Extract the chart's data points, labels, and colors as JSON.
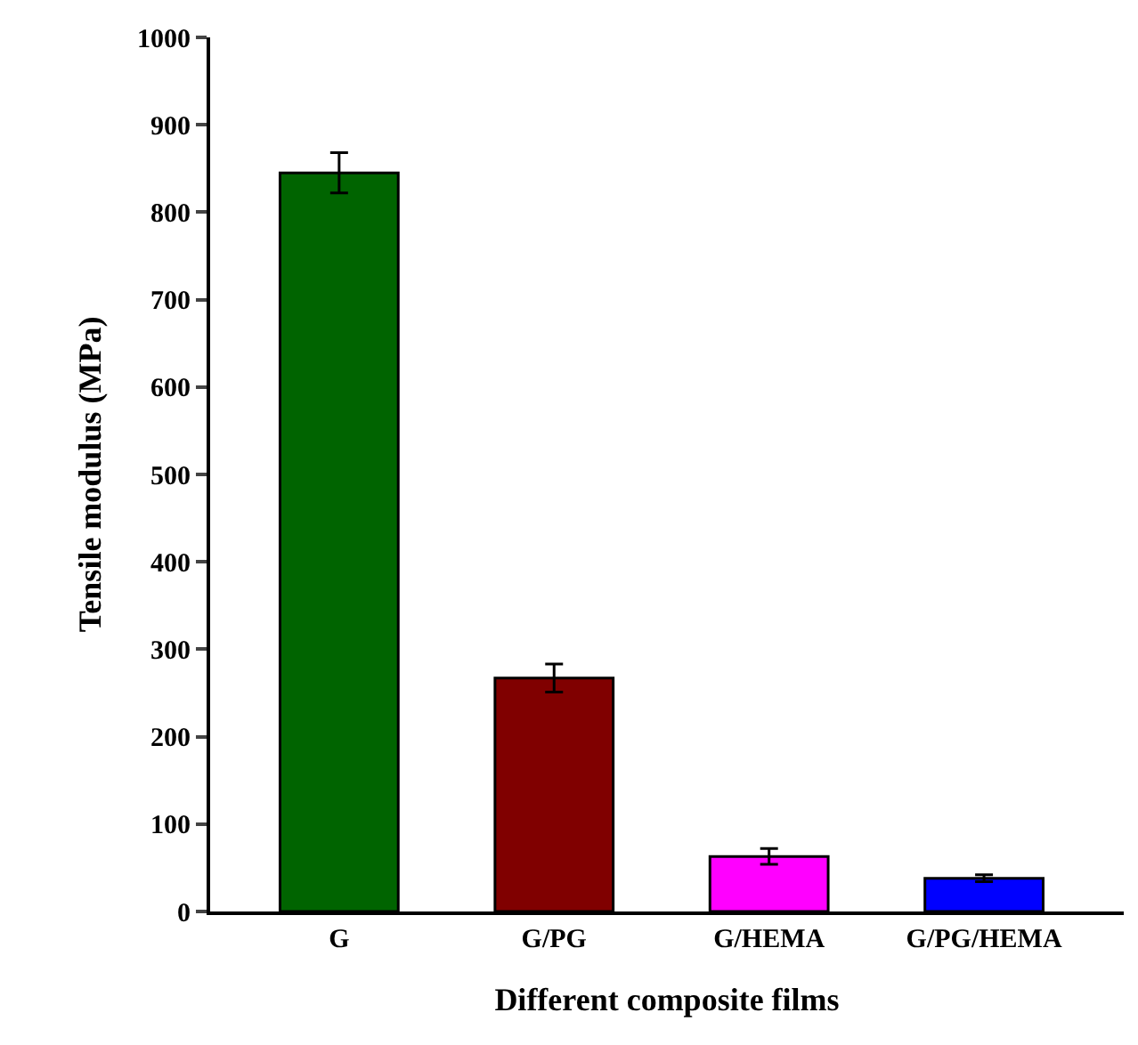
{
  "chart_data": {
    "type": "bar",
    "xlabel": "Different composite films",
    "ylabel": "Tensile modulus (MPa)",
    "categories": [
      "G",
      "G/PG",
      "G/HEMA",
      "G/PG/HEMA"
    ],
    "values": [
      845,
      267,
      63,
      38
    ],
    "colors": [
      "#006400",
      "#800000",
      "#ff00ff",
      "#0000ff"
    ],
    "errors": [
      23,
      16,
      9,
      4
    ],
    "ylim": [
      0,
      1000
    ],
    "yticks": [
      0,
      100,
      200,
      300,
      400,
      500,
      600,
      700,
      800,
      900,
      1000
    ]
  }
}
